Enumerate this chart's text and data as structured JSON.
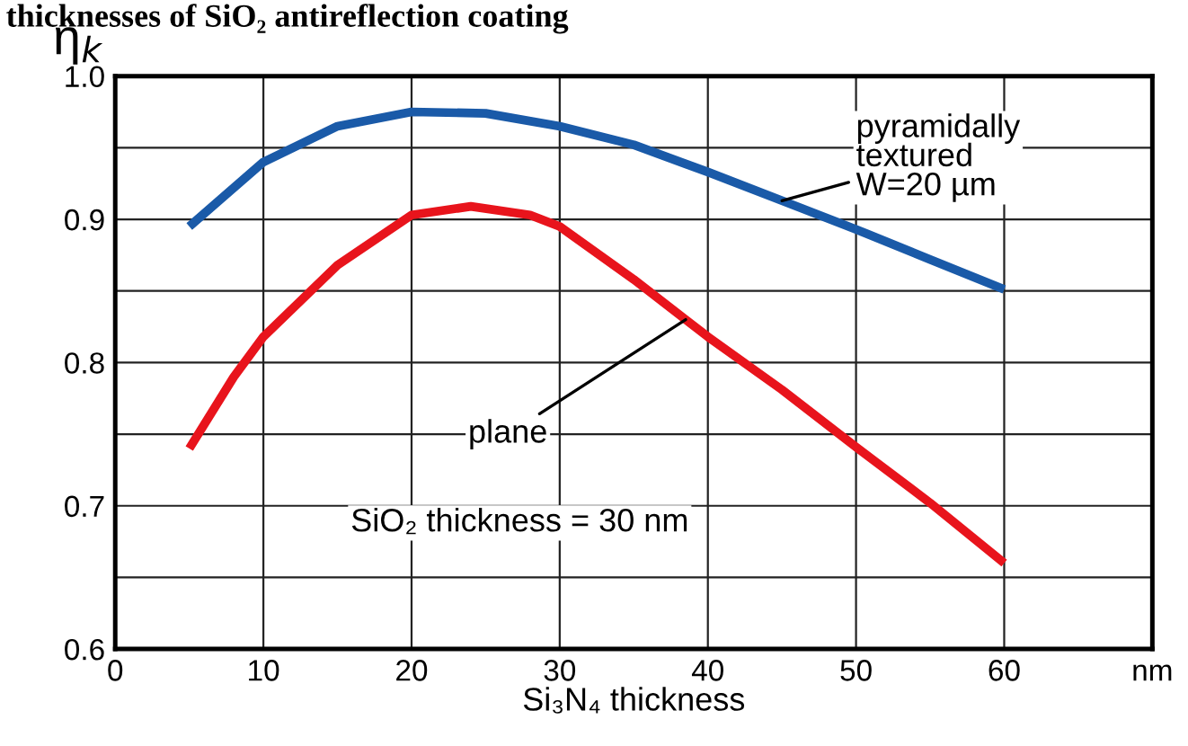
{
  "chart_data": {
    "type": "line",
    "title": "thicknesses of SiO₂ antireflection coating",
    "xlabel": "Si₃N₄ thickness",
    "ylabel": "η$_{k}$",
    "xlim": [
      0,
      70
    ],
    "xticks": [
      0,
      10,
      20,
      30,
      40,
      50,
      60,
      {
        "value": 70,
        "label": "nm"
      }
    ],
    "ylim": [
      0.6,
      1.0
    ],
    "yticks": [
      0.6,
      {
        "value": 0.65,
        "label": null
      },
      0.7,
      {
        "value": 0.75,
        "label": null
      },
      0.8,
      {
        "value": 0.85,
        "label": null
      },
      0.9,
      {
        "value": 0.95,
        "label": null
      },
      {
        "value": 1.0,
        "label": "1.0"
      }
    ],
    "grid": true,
    "marker": "none",
    "line_style": "solid",
    "series": [
      {
        "color": "#1a5aa8",
        "x": [
          5,
          10,
          15,
          20,
          25,
          30,
          35,
          40,
          45,
          50,
          55,
          60
        ],
        "values": [
          0.895,
          0.94,
          0.965,
          0.975,
          0.974,
          0.965,
          0.952,
          0.933,
          0.913,
          0.893,
          0.872,
          0.851
        ]
      },
      {
        "color": "#e8141c",
        "x": [
          5,
          8,
          10,
          15,
          20,
          24,
          28,
          30,
          35,
          40,
          45,
          50,
          55,
          60
        ],
        "values": [
          0.74,
          0.79,
          0.818,
          0.868,
          0.903,
          0.909,
          0.903,
          0.895,
          0.858,
          0.818,
          0.781,
          0.741,
          0.702,
          0.66
        ]
      }
    ],
    "annotations": [
      {
        "text": "pyramidally\ntextured\nW=20 µm",
        "x": 45,
        "y": 0.913
      },
      {
        "text": "plane",
        "x": 38.5,
        "y": 0.83
      },
      "SiO₂ thickness = 30 nm"
    ]
  }
}
